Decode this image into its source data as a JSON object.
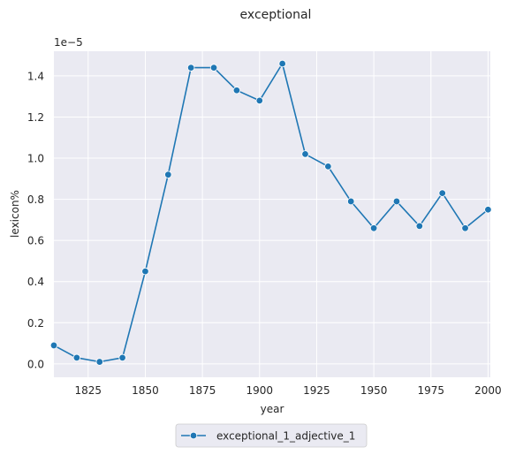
{
  "chart_data": {
    "type": "line",
    "title": "exceptional",
    "xlabel": "year",
    "ylabel": "lexicon%",
    "y_offset_label": "1e−5",
    "xlim": [
      1810,
      2001
    ],
    "ylim": [
      -0.065,
      1.52
    ],
    "x_ticks": [
      1825,
      1850,
      1875,
      1900,
      1925,
      1950,
      1975,
      2000
    ],
    "y_ticks": [
      0.0,
      0.2,
      0.4,
      0.6,
      0.8,
      1.0,
      1.2,
      1.4
    ],
    "y_tick_labels": [
      "0.0",
      "0.2",
      "0.4",
      "0.6",
      "0.8",
      "1.0",
      "1.2",
      "1.4"
    ],
    "grid": true,
    "legend_position": "bottom-center",
    "series": [
      {
        "name": "exceptional_1_adjective_1",
        "color": "#1f77b4",
        "marker": "circle",
        "x": [
          1810,
          1820,
          1830,
          1840,
          1850,
          1860,
          1870,
          1880,
          1890,
          1900,
          1910,
          1920,
          1930,
          1940,
          1950,
          1960,
          1970,
          1980,
          1990,
          2000
        ],
        "y": [
          0.09,
          0.03,
          0.01,
          0.03,
          0.45,
          0.92,
          1.44,
          1.44,
          1.33,
          1.28,
          1.46,
          1.02,
          0.96,
          0.79,
          0.66,
          0.79,
          0.67,
          0.83,
          0.66,
          0.75
        ]
      }
    ]
  }
}
